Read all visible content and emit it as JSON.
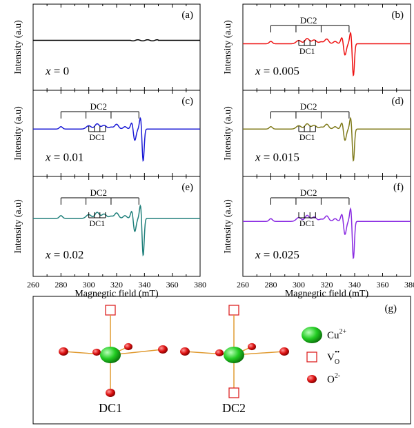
{
  "chart_data": [
    {
      "panel_label": "(a)",
      "x_label": "x = 0",
      "x_value": 0,
      "type": "line",
      "color": "#000000",
      "dc2_label": "",
      "dc1_label": "",
      "ylabel": "Intensity (a.u)",
      "xlabel": "",
      "xlim": [
        260,
        380
      ],
      "x_ticks": [],
      "spectrum": "flat"
    },
    {
      "panel_label": "(b)",
      "x_label": "x = 0.005",
      "x_value": 0.005,
      "type": "line",
      "color": "#ee1111",
      "dc2_label": "DC2",
      "dc1_label": "DC1",
      "ylabel": "Intensity (a.u)",
      "xlabel": "",
      "xlim": [
        260,
        380
      ],
      "x_ticks": [],
      "spectrum": "epr"
    },
    {
      "panel_label": "(c)",
      "x_label": "x = 0.01",
      "x_value": 0.01,
      "type": "line",
      "color": "#1a1ad6",
      "dc2_label": "DC2",
      "dc1_label": "DC1",
      "ylabel": "Intensity (a.u)",
      "xlabel": "",
      "xlim": [
        260,
        380
      ],
      "x_ticks": [],
      "spectrum": "epr"
    },
    {
      "panel_label": "(d)",
      "x_label": "x = 0.015",
      "x_value": 0.015,
      "type": "line",
      "color": "#7f7a1a",
      "dc2_label": "DC2",
      "dc1_label": "DC1",
      "ylabel": "Intensity (a.u)",
      "xlabel": "",
      "xlim": [
        260,
        380
      ],
      "x_ticks": [],
      "spectrum": "epr"
    },
    {
      "panel_label": "(e)",
      "x_label": "x = 0.02",
      "x_value": 0.02,
      "type": "line",
      "color": "#1e7f7a",
      "dc2_label": "DC2",
      "dc1_label": "DC1",
      "ylabel": "Intensity (a.u)",
      "xlabel": "Magnegtic field (mT)",
      "xlim": [
        260,
        380
      ],
      "x_ticks": [
        "260",
        "280",
        "300",
        "320",
        "340",
        "360",
        "380"
      ],
      "spectrum": "epr"
    },
    {
      "panel_label": "(f)",
      "x_label": "x = 0.025",
      "x_value": 0.025,
      "type": "line",
      "color": "#8a2be2",
      "dc2_label": "DC2",
      "dc1_label": "DC1",
      "ylabel": "Intensity (a.u)",
      "xlabel": "Magnegtic field (mT)",
      "xlim": [
        260,
        380
      ],
      "x_ticks": [
        "260",
        "280",
        "300",
        "320",
        "340",
        "360",
        "380"
      ],
      "spectrum": "epr"
    }
  ],
  "shared": {
    "tick_values": [
      260,
      280,
      300,
      320,
      340,
      360,
      380
    ],
    "dc2_bracket_mT": [
      280,
      298,
      316,
      336
    ],
    "dc1_bracket_mT": [
      300,
      304,
      308,
      312
    ]
  },
  "structure_panel": {
    "label": "(g)",
    "site_labels": [
      "DC1",
      "DC2"
    ],
    "legend": [
      {
        "symbol": "sphere",
        "color": "#22cc22",
        "text": "Cu",
        "sup": "2+"
      },
      {
        "symbol": "square",
        "color": "#dd2222",
        "text": "V",
        "sub": "O",
        "sup": "••"
      },
      {
        "symbol": "dot",
        "color": "#dd1111",
        "text": "O",
        "sup": "2-"
      }
    ],
    "bond_color": "#e09a30"
  }
}
